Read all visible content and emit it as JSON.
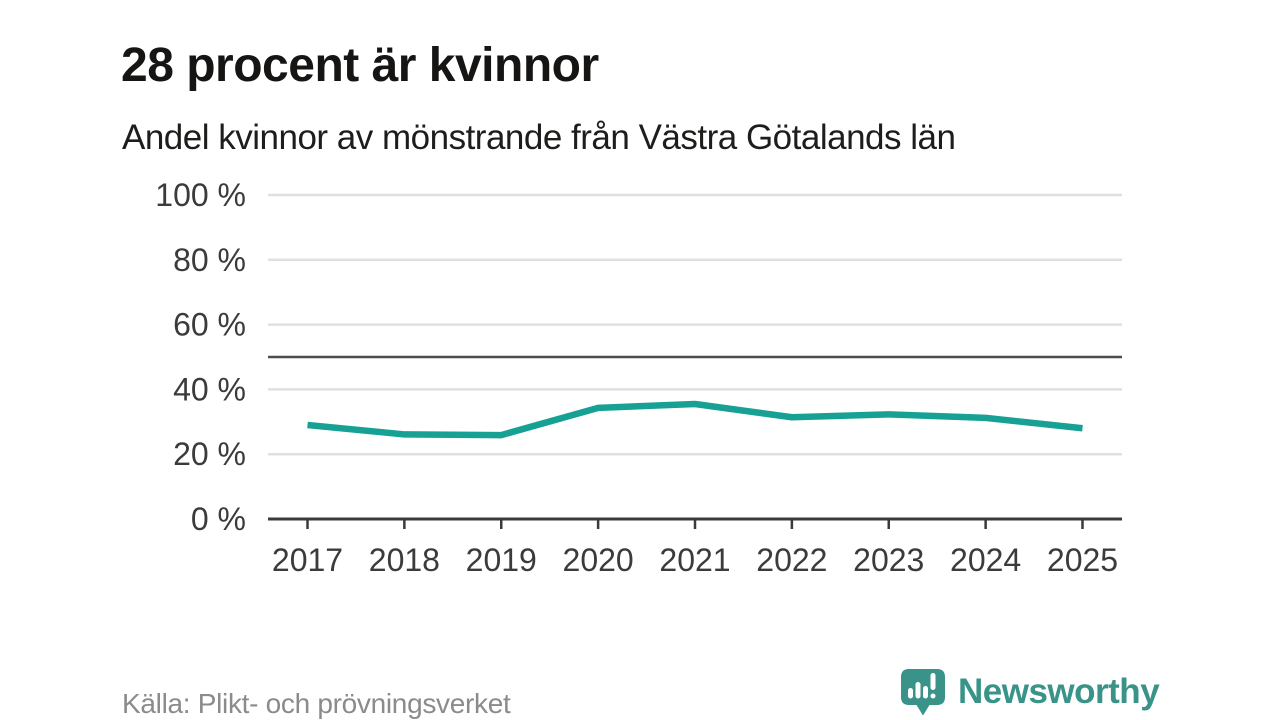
{
  "header": {
    "title": "28 procent är kvinnor",
    "subtitle": "Andel kvinnor av mönstrande från Västra Götalands län"
  },
  "chart_data": {
    "type": "line",
    "title": "28 procent är kvinnor",
    "subtitle": "Andel kvinnor av mönstrande från Västra Götalands län",
    "x": [
      2017,
      2018,
      2019,
      2020,
      2021,
      2022,
      2023,
      2024,
      2025
    ],
    "series": [
      {
        "name": "Andel kvinnor av mönstrande",
        "values": [
          29.0,
          26.1,
          25.9,
          34.3,
          35.5,
          31.4,
          32.3,
          31.2,
          28.0
        ]
      }
    ],
    "xlabel": "",
    "ylabel": "",
    "ylim": [
      0,
      100
    ],
    "ytick_step": 20,
    "ytick_suffix": " %",
    "reference_line": 50,
    "grid": true,
    "legend": false,
    "colors": {
      "line": "#16a194",
      "grid": "#e0e0e0",
      "reference": "#4d4d4d",
      "axis": "#3a3a3a",
      "tick_label": "#3b3b3b"
    }
  },
  "footer": {
    "source": "Källa: Plikt- och prövningsverket",
    "brand": "Newsworthy",
    "brand_color": "#3a9388"
  }
}
